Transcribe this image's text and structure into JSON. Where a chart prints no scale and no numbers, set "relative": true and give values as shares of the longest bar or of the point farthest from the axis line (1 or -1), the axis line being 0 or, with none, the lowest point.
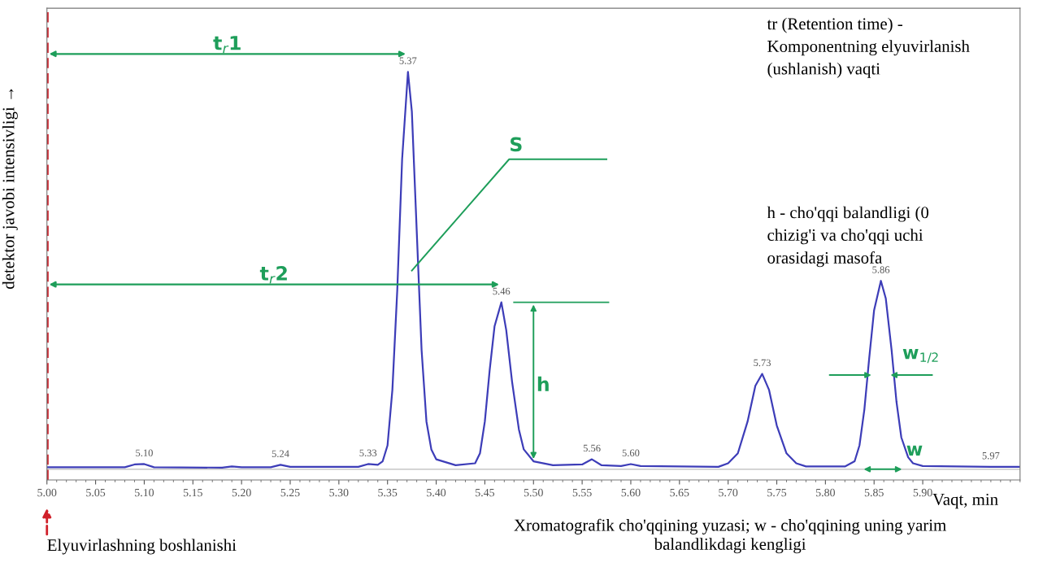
{
  "chart_data": {
    "type": "line",
    "relative": true,
    "xlabel": "Vaqt, min",
    "ylabel": "detektor javobi intensivligi →",
    "x": [
      5.0,
      5.08,
      5.09,
      5.1,
      5.11,
      5.18,
      5.19,
      5.2,
      5.23,
      5.24,
      5.25,
      5.32,
      5.33,
      5.34,
      5.345,
      5.35,
      5.355,
      5.36,
      5.365,
      5.371,
      5.375,
      5.38,
      5.385,
      5.39,
      5.395,
      5.4,
      5.42,
      5.44,
      5.445,
      5.45,
      5.455,
      5.46,
      5.467,
      5.472,
      5.478,
      5.485,
      5.49,
      5.5,
      5.52,
      5.55,
      5.56,
      5.57,
      5.59,
      5.6,
      5.61,
      5.69,
      5.7,
      5.71,
      5.72,
      5.728,
      5.735,
      5.742,
      5.75,
      5.76,
      5.77,
      5.78,
      5.82,
      5.83,
      5.835,
      5.84,
      5.845,
      5.85,
      5.857,
      5.862,
      5.868,
      5.873,
      5.878,
      5.885,
      5.89,
      5.9,
      5.97,
      6.0
    ],
    "series": [
      {
        "color": "#3d3db8",
        "values": [
          0.005,
          0.005,
          0.012,
          0.013,
          0.005,
          0.004,
          0.007,
          0.005,
          0.005,
          0.011,
          0.006,
          0.006,
          0.013,
          0.011,
          0.02,
          0.06,
          0.2,
          0.45,
          0.78,
          1.0,
          0.9,
          0.6,
          0.3,
          0.12,
          0.05,
          0.025,
          0.01,
          0.015,
          0.04,
          0.12,
          0.25,
          0.36,
          0.42,
          0.35,
          0.22,
          0.1,
          0.05,
          0.02,
          0.01,
          0.012,
          0.025,
          0.01,
          0.008,
          0.013,
          0.008,
          0.006,
          0.015,
          0.04,
          0.12,
          0.21,
          0.24,
          0.2,
          0.11,
          0.04,
          0.015,
          0.007,
          0.007,
          0.02,
          0.06,
          0.15,
          0.28,
          0.4,
          0.474,
          0.43,
          0.3,
          0.17,
          0.08,
          0.03,
          0.015,
          0.008,
          0.006,
          0.006
        ]
      }
    ],
    "xlim": [
      5.0,
      6.0
    ],
    "xticks": [
      {
        "value": 5.0,
        "label": "5.00"
      },
      {
        "value": 5.05,
        "label": "5.05"
      },
      {
        "value": 5.1,
        "label": "5.10"
      },
      {
        "value": 5.15,
        "label": "5.15"
      },
      {
        "value": 5.2,
        "label": "5.20"
      },
      {
        "value": 5.25,
        "label": "5.25"
      },
      {
        "value": 5.3,
        "label": "5.30"
      },
      {
        "value": 5.35,
        "label": "5.35"
      },
      {
        "value": 5.4,
        "label": "5.40"
      },
      {
        "value": 5.45,
        "label": "5.45"
      },
      {
        "value": 5.5,
        "label": "5.50"
      },
      {
        "value": 5.55,
        "label": "5.55"
      },
      {
        "value": 5.6,
        "label": "5.60"
      },
      {
        "value": 5.65,
        "label": "5.65"
      },
      {
        "value": 5.7,
        "label": "5.70"
      },
      {
        "value": 5.75,
        "label": "5.75"
      },
      {
        "value": 5.8,
        "label": "5.80"
      },
      {
        "value": 5.85,
        "label": "5.85"
      },
      {
        "value": 5.9,
        "label": "5.90"
      }
    ],
    "ref_lines": [
      {
        "axis": "x",
        "value": 5.0,
        "label": "Elyuvirlashning boshlanishi",
        "color": "#d0202a",
        "line_style": "dashed"
      }
    ],
    "annotations": [
      {
        "text": "5.10",
        "x": 5.1,
        "y": 0.013
      },
      {
        "text": "5.24",
        "x": 5.24,
        "y": 0.011
      },
      {
        "text": "5.33",
        "x": 5.33,
        "y": 0.013
      },
      {
        "text": "5.37",
        "x": 5.371,
        "y": 1.0
      },
      {
        "text": "5.46",
        "x": 5.467,
        "y": 0.42
      },
      {
        "text": "5.56",
        "x": 5.56,
        "y": 0.025
      },
      {
        "text": "5.60",
        "x": 5.6,
        "y": 0.013
      },
      {
        "text": "5.73",
        "x": 5.735,
        "y": 0.24
      },
      {
        "text": "5.86",
        "x": 5.857,
        "y": 0.474
      },
      {
        "text": "5.97",
        "x": 5.97,
        "y": 0.006
      },
      "t$_{r}$1",
      "t$_{r}$2",
      "S",
      "h",
      "w$_{1/2}$",
      "w",
      "tr (Retention time) -\nKomponentning elyuvirlanish\n(ushlanish) vaqti",
      "h - cho'qqi balandligi (0\nchizig'i va cho'qqi uchi\norasidagi masofa",
      "Xromatografik cho'qqining yuzasi; w - cho'qqining uning yarim\nbalandlikdagi kengligi"
    ]
  }
}
